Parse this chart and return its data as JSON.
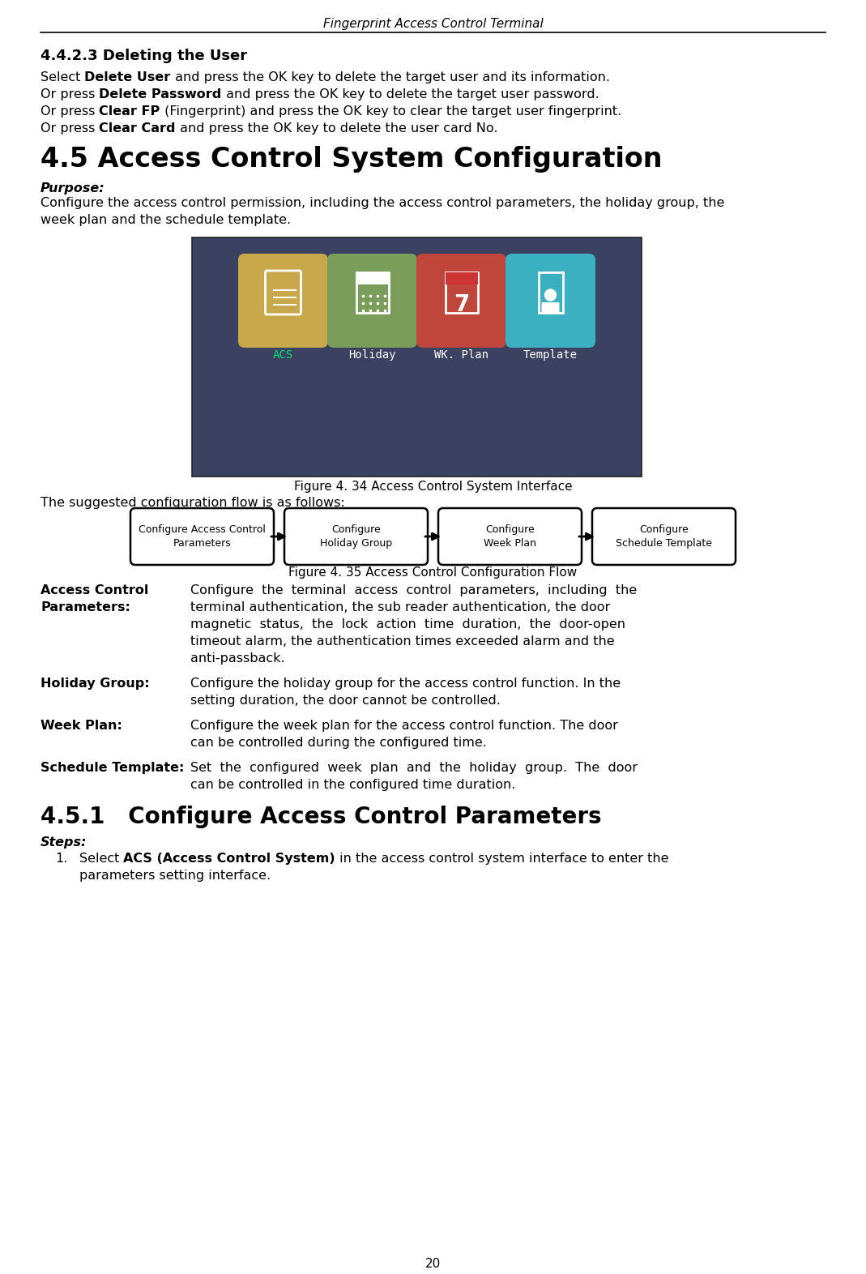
{
  "page_title": "Fingerprint Access Control Terminal",
  "page_number": "20",
  "bg_color": "#ffffff",
  "section_442": {
    "heading": "4.4.2.3 Deleting the User",
    "lines": [
      [
        "Select ",
        "Delete User",
        " and press the OK key to delete the target user and its information."
      ],
      [
        "Or press ",
        "Delete Password",
        " and press the OK key to delete the target user password."
      ],
      [
        "Or press ",
        "Clear FP",
        " (Fingerprint) and press the OK key to clear the target user fingerprint."
      ],
      [
        "Or press ",
        "Clear Card",
        " and press the OK key to delete the user card No."
      ]
    ]
  },
  "section_45": {
    "heading": "4.5 Access Control System Configuration",
    "purpose_label": "Purpose:",
    "purpose_lines": [
      "Configure the access control permission, including the access control parameters, the holiday group, the",
      "week plan and the schedule template."
    ],
    "figure34_caption": "Figure 4. 34 Access Control System Interface",
    "screen_bg": "#3b4261",
    "screen_icons": [
      {
        "label": "ACS",
        "color": "#c9a84c",
        "text_color": "#00e676"
      },
      {
        "label": "Holiday",
        "color": "#7a9e5a",
        "text_color": "#ffffff"
      },
      {
        "label": "WK. Plan",
        "color": "#c0453a",
        "text_color": "#ffffff"
      },
      {
        "label": "Template",
        "color": "#3ab0c0",
        "text_color": "#ffffff"
      }
    ],
    "flow_caption": "Figure 4. 35 Access Control Configuration Flow",
    "flow_boxes": [
      "Configure Access Control\nParameters",
      "Configure\nHoliday Group",
      "Configure\nWeek Plan",
      "Configure\nSchedule Template"
    ],
    "descriptions": [
      {
        "term_lines": [
          "Access Control",
          "Parameters:"
        ],
        "text_lines": [
          "Configure  the  terminal  access  control  parameters,  including  the",
          "terminal authentication, the sub reader authentication, the door",
          "magnetic  status,  the  lock  action  time  duration,  the  door-open",
          "timeout alarm, the authentication times exceeded alarm and the",
          "anti-passback."
        ]
      },
      {
        "term_lines": [
          "Holiday Group:"
        ],
        "text_lines": [
          "Configure the holiday group for the access control function. In the",
          "setting duration, the door cannot be controlled."
        ]
      },
      {
        "term_lines": [
          "Week Plan:"
        ],
        "text_lines": [
          "Configure the week plan for the access control function. The door",
          "can be controlled during the configured time."
        ]
      },
      {
        "term_lines": [
          "Schedule Template:"
        ],
        "text_lines": [
          "Set  the  configured  week  plan  and  the  holiday  group.  The  door",
          "can be controlled in the configured time duration."
        ]
      }
    ]
  },
  "section_451": {
    "heading": "4.5.1   Configure Access Control Parameters",
    "steps_label": "Steps:",
    "step1_line1_parts": [
      "Select ",
      "ACS (Access Control System)",
      " in the access control system interface to enter the"
    ],
    "step1_line2": "parameters setting interface."
  }
}
